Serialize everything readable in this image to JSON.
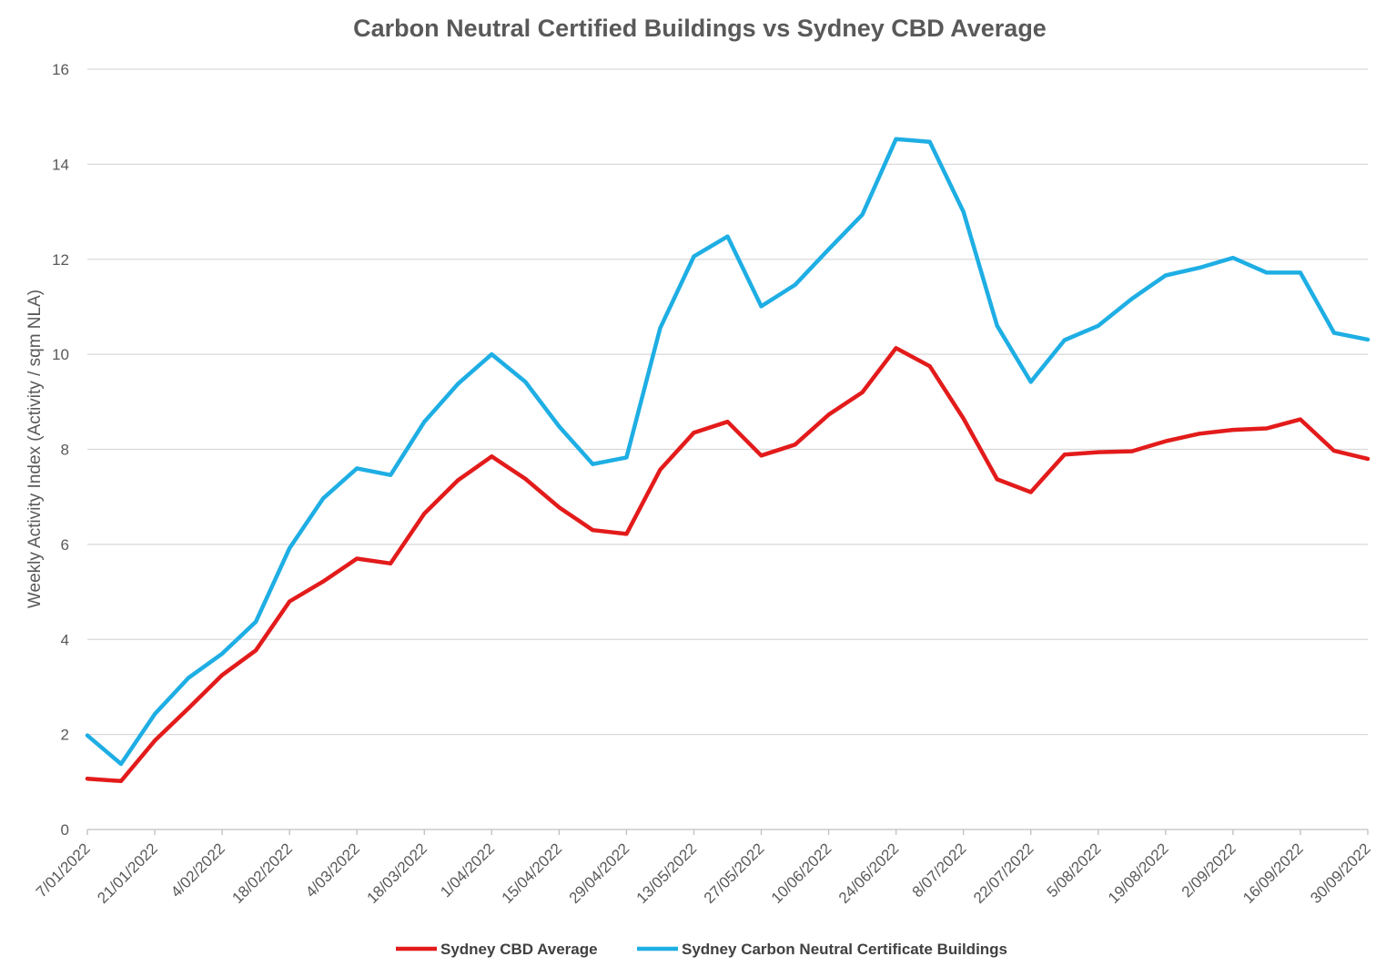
{
  "chart_data": {
    "type": "line",
    "title": "Carbon Neutral Certified Buildings vs Sydney CBD Average",
    "ylabel": "Weekly Activity Index (Activity / sqm NLA)",
    "xlabel": "",
    "ylim": [
      0,
      16
    ],
    "yticks": [
      0,
      2,
      4,
      6,
      8,
      10,
      12,
      14,
      16
    ],
    "grid": true,
    "legend_position": "bottom",
    "x": [
      "7/01/2022",
      "14/01/2022",
      "21/01/2022",
      "28/01/2022",
      "4/02/2022",
      "11/02/2022",
      "18/02/2022",
      "25/02/2022",
      "4/03/2022",
      "11/03/2022",
      "18/03/2022",
      "25/03/2022",
      "1/04/2022",
      "8/04/2022",
      "15/04/2022",
      "22/04/2022",
      "29/04/2022",
      "6/05/2022",
      "13/05/2022",
      "20/05/2022",
      "27/05/2022",
      "3/06/2022",
      "10/06/2022",
      "17/06/2022",
      "24/06/2022",
      "1/07/2022",
      "8/07/2022",
      "15/07/2022",
      "22/07/2022",
      "29/07/2022",
      "5/08/2022",
      "12/08/2022",
      "19/08/2022",
      "26/08/2022",
      "2/09/2022",
      "9/09/2022",
      "16/09/2022",
      "23/09/2022",
      "30/09/2022"
    ],
    "x_tick_labels": [
      "7/01/2022",
      "21/01/2022",
      "4/02/2022",
      "18/02/2022",
      "4/03/2022",
      "18/03/2022",
      "1/04/2022",
      "15/04/2022",
      "29/04/2022",
      "13/05/2022",
      "27/05/2022",
      "10/06/2022",
      "24/06/2022",
      "8/07/2022",
      "22/07/2022",
      "5/08/2022",
      "19/08/2022",
      "2/09/2022",
      "16/09/2022",
      "30/09/2022"
    ],
    "series": [
      {
        "name": "Sydney CBD Average",
        "color": "#e31b1b",
        "values": [
          1.07,
          1.02,
          1.87,
          2.55,
          3.25,
          3.77,
          4.8,
          5.22,
          5.7,
          5.6,
          6.65,
          7.35,
          7.85,
          7.38,
          6.78,
          6.3,
          6.22,
          7.57,
          8.35,
          8.58,
          7.87,
          8.1,
          8.73,
          9.2,
          10.13,
          9.75,
          8.65,
          7.37,
          7.1,
          7.89,
          7.94,
          7.96,
          8.17,
          8.33,
          8.41,
          8.44,
          8.63,
          7.97,
          7.8
        ]
      },
      {
        "name": "Sydney Carbon Neutral Certificate Buildings",
        "color": "#1eaee4",
        "values": [
          1.98,
          1.38,
          2.43,
          3.19,
          3.7,
          4.37,
          5.92,
          6.97,
          7.6,
          7.46,
          8.58,
          9.38,
          10.0,
          9.42,
          8.48,
          7.69,
          7.83,
          10.55,
          12.06,
          12.48,
          11.01,
          11.46,
          12.21,
          12.94,
          14.53,
          14.47,
          13.0,
          10.6,
          9.42,
          10.3,
          10.6,
          11.17,
          11.66,
          11.82,
          12.03,
          11.72,
          11.72,
          10.45,
          10.31
        ]
      }
    ]
  }
}
